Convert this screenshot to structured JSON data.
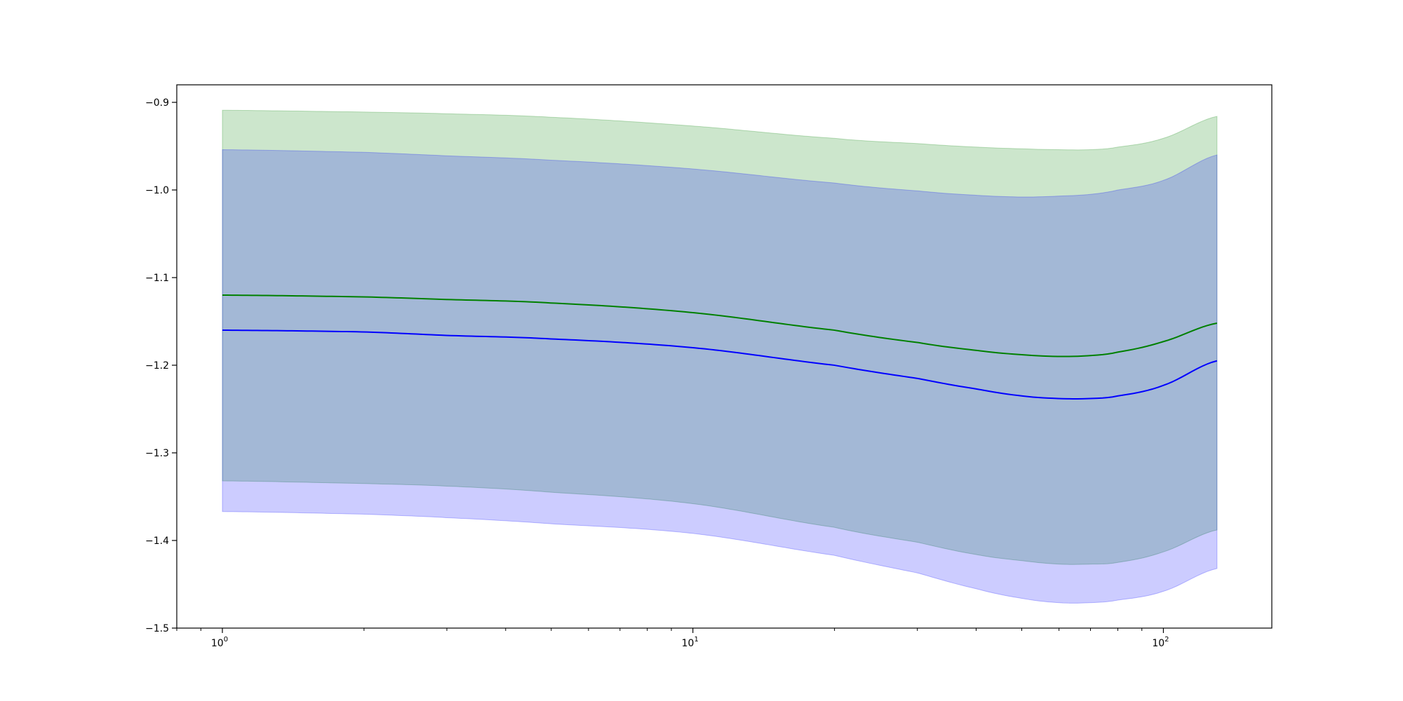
{
  "chart_data": {
    "type": "line",
    "title": "",
    "xlabel": "",
    "ylabel": "",
    "xscale": "log",
    "xlim": [
      0.8,
      170
    ],
    "ylim": [
      -1.5,
      -0.88
    ],
    "grid": false,
    "legend": "none",
    "x_ticks": [
      {
        "value": 1,
        "base": "10",
        "exp": "0"
      },
      {
        "value": 10,
        "base": "10",
        "exp": "1"
      },
      {
        "value": 100,
        "base": "10",
        "exp": "2"
      }
    ],
    "y_ticks": [
      {
        "value": -0.9,
        "label": "−0.9"
      },
      {
        "value": -1.0,
        "label": "−1.0"
      },
      {
        "value": -1.1,
        "label": "−1.1"
      },
      {
        "value": -1.2,
        "label": "−1.2"
      },
      {
        "value": -1.3,
        "label": "−1.3"
      },
      {
        "value": -1.4,
        "label": "−1.4"
      },
      {
        "value": -1.5,
        "label": "−1.5"
      }
    ],
    "x": [
      1,
      2,
      3,
      5,
      10,
      20,
      30,
      40,
      50,
      60,
      70,
      80,
      100,
      130
    ],
    "series": [
      {
        "color": "#008000",
        "values": [
          -1.12,
          -1.122,
          -1.125,
          -1.129,
          -1.14,
          -1.16,
          -1.174,
          -1.183,
          -1.188,
          -1.19,
          -1.189,
          -1.185,
          -1.173,
          -1.152
        ],
        "band_upper": [
          -0.909,
          -0.911,
          -0.913,
          -0.917,
          -0.927,
          -0.941,
          -0.947,
          -0.951,
          -0.953,
          -0.954,
          -0.954,
          -0.951,
          -0.941,
          -0.916
        ],
        "band_lower": [
          -1.332,
          -1.335,
          -1.338,
          -1.345,
          -1.358,
          -1.385,
          -1.402,
          -1.416,
          -1.423,
          -1.427,
          -1.427,
          -1.425,
          -1.413,
          -1.388
        ],
        "band_color": "#008000"
      },
      {
        "color": "#0000ff",
        "values": [
          -1.16,
          -1.162,
          -1.166,
          -1.17,
          -1.18,
          -1.2,
          -1.215,
          -1.227,
          -1.235,
          -1.238,
          -1.238,
          -1.235,
          -1.223,
          -1.195
        ],
        "band_upper": [
          -0.954,
          -0.957,
          -0.961,
          -0.966,
          -0.976,
          -0.992,
          -1.001,
          -1.006,
          -1.008,
          -1.007,
          -1.005,
          -1.0,
          -0.989,
          -0.96
        ],
        "band_lower": [
          -1.367,
          -1.37,
          -1.374,
          -1.381,
          -1.392,
          -1.417,
          -1.437,
          -1.455,
          -1.466,
          -1.471,
          -1.471,
          -1.468,
          -1.458,
          -1.432
        ],
        "band_color": "#0000ff"
      }
    ]
  }
}
